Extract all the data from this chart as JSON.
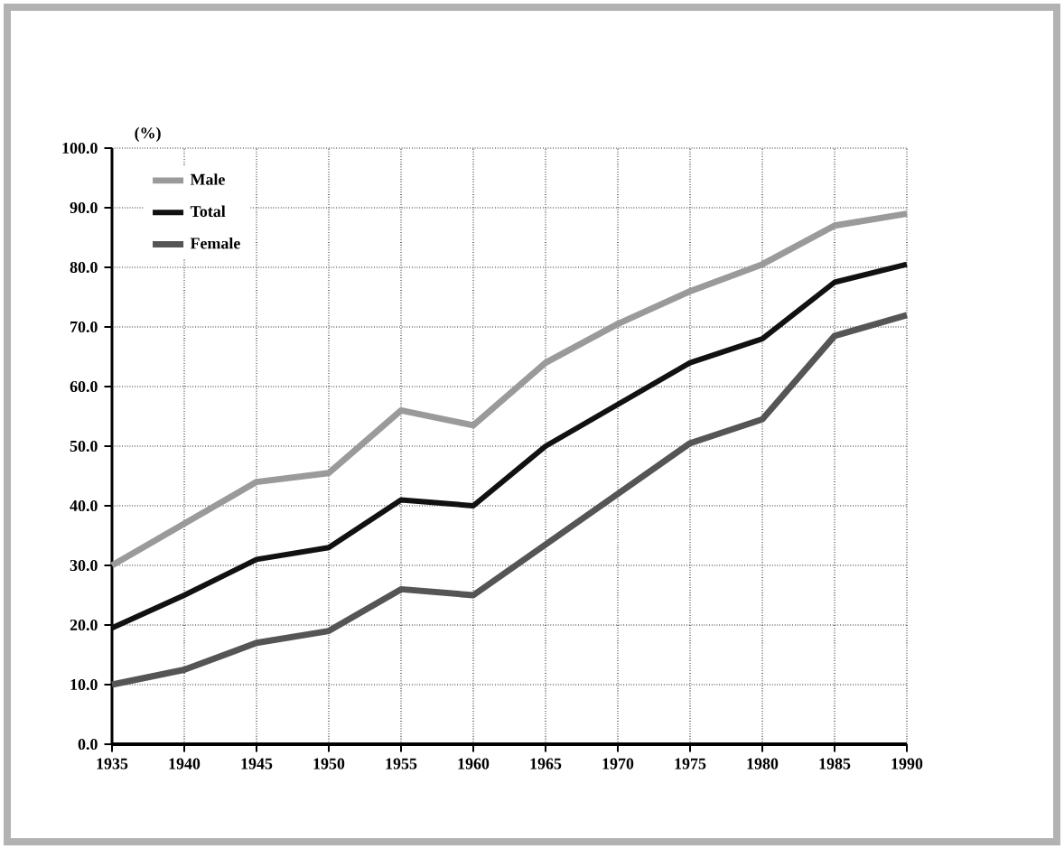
{
  "chart_data": {
    "type": "line",
    "ylabel": "(%)",
    "x": [
      1935,
      1940,
      1945,
      1950,
      1955,
      1960,
      1965,
      1970,
      1975,
      1980,
      1985,
      1990
    ],
    "xlim": [
      1935,
      1990
    ],
    "xticks": [
      1935,
      1940,
      1945,
      1950,
      1955,
      1960,
      1965,
      1970,
      1975,
      1980,
      1985,
      1990
    ],
    "ylim": [
      0,
      100
    ],
    "yticks": [
      {
        "value": 0,
        "label": "0.0"
      },
      {
        "value": 10,
        "label": "10.0"
      },
      {
        "value": 20,
        "label": "20.0"
      },
      {
        "value": 30,
        "label": "30.0"
      },
      {
        "value": 40,
        "label": "40.0"
      },
      {
        "value": 50,
        "label": "50.0"
      },
      {
        "value": 60,
        "label": "60.0"
      },
      {
        "value": 70,
        "label": "70.0"
      },
      {
        "value": 80,
        "label": "80.0"
      },
      {
        "value": 90,
        "label": "90.0"
      },
      {
        "value": 100,
        "label": "100.0"
      }
    ],
    "grid": true,
    "legend": "top left",
    "marker": "none",
    "line_style": "solid",
    "series": [
      {
        "name": "Male",
        "color": "#9a9a9a",
        "values": [
          30,
          37,
          44,
          45.5,
          56,
          53.5,
          64,
          70.5,
          76,
          80.5,
          87,
          89
        ]
      },
      {
        "name": "Total",
        "color": "#111111",
        "values": [
          19.5,
          25,
          31,
          33,
          41,
          40,
          50,
          57,
          64,
          68,
          77.5,
          80.5
        ]
      },
      {
        "name": "Female",
        "color": "#555555",
        "values": [
          10,
          12.5,
          17,
          19,
          26,
          25,
          33.5,
          42,
          50.5,
          54.5,
          68.5,
          72
        ]
      }
    ]
  }
}
